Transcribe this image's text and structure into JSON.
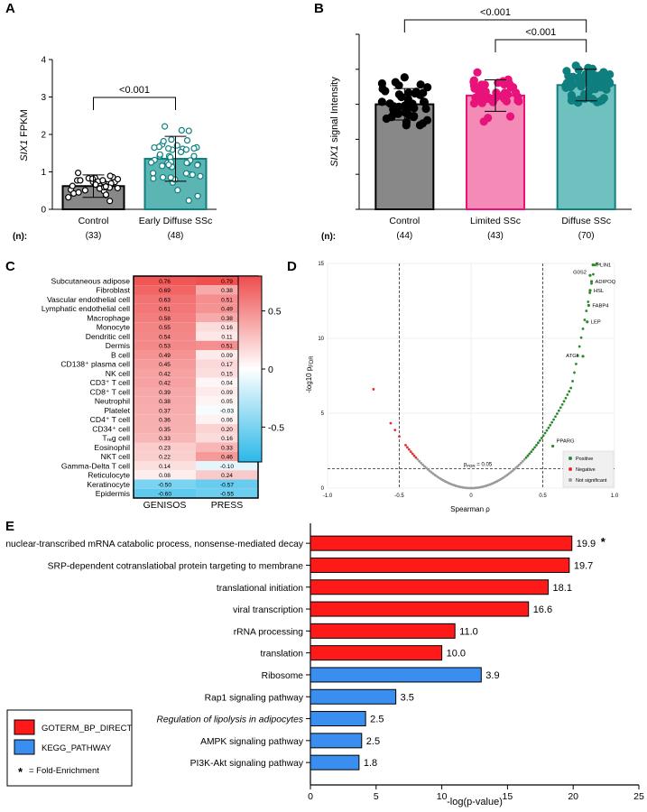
{
  "panels": {
    "A": {
      "letter": "A",
      "ylabel_italic": "SIX1",
      "ylabel_rest": " FPKM",
      "n_label": "(n):"
    },
    "B": {
      "letter": "B",
      "ylabel_italic": "SIX1",
      "ylabel_rest": " signal Intensity",
      "n_label": "(n):"
    },
    "C": {
      "letter": "C",
      "col_headers": [
        "GENISOS",
        "PRESS"
      ]
    },
    "D": {
      "letter": "D",
      "xlabel": "Spearman ρ",
      "ylabel": "-log10 p",
      "ylabel_sub": "FDR",
      "threshold_label": "p",
      "threshold_sub": "FDR",
      "threshold_value": " = 0.05"
    },
    "E": {
      "letter": "E",
      "xlabel": "-log(p-value)",
      "legend": {
        "bp": "GOTERM_BP_DIRECT",
        "kegg": "KEGG_PATHWAY",
        "star": "*",
        "star_text": "= Fold-Enrichment"
      }
    }
  },
  "chart_data": [
    {
      "panel": "A",
      "type": "bar",
      "categories": [
        "Control",
        "Early Diffuse SSc"
      ],
      "n": [
        "(33)",
        "(48)"
      ],
      "values": [
        0.62,
        1.35
      ],
      "sd": [
        0.3,
        0.6
      ],
      "ylim": [
        0,
        4
      ],
      "yticks": [
        "0",
        "1",
        "2",
        "3",
        "4"
      ],
      "colors": [
        "#888888",
        "#5ab5b3"
      ],
      "edge_colors": [
        "#000000",
        "#0f7f7f"
      ],
      "annotations": [
        {
          "text": "<0.001",
          "from": 0,
          "to": 1
        }
      ]
    },
    {
      "panel": "B",
      "type": "bar",
      "categories": [
        "Control",
        "Limited SSc",
        "Diffuse SSc"
      ],
      "n": [
        "(44)",
        "(43)",
        "(70)"
      ],
      "values": [
        3.0,
        3.25,
        3.55
      ],
      "sd": [
        0.45,
        0.45,
        0.45
      ],
      "ylim": [
        0,
        5
      ],
      "colors": [
        "#888888",
        "#f48bb6",
        "#6fc1bf"
      ],
      "edge_colors": [
        "#000000",
        "#e8137a",
        "#0f7f7f"
      ],
      "annotations": [
        {
          "text": "<0.001",
          "from": 0,
          "to": 2
        },
        {
          "text": "<0.001",
          "from": 1,
          "to": 2
        }
      ]
    },
    {
      "panel": "C",
      "type": "heatmap",
      "rows": [
        "Subcutaneous adipose",
        "Fibroblast",
        "Vascular endothelial cell",
        "Lymphatic endothelial cell",
        "Macrophage",
        "Monocyte",
        "Dendritic cell",
        "Dermis",
        "B cell",
        "CD138⁺ plasma cell",
        "NK cell",
        "CD3⁺ T cell",
        "CD8⁺ T cell",
        "Neutrophil",
        "Platelet",
        "CD4⁺ T cell",
        "CD34⁺ cell",
        "Tᵣₑg cell",
        "Eosinophil",
        "NKT cell",
        "Gamma-Delta T cell",
        "Reticulocyte",
        "Keratinocyte",
        "Epidermis"
      ],
      "columns": [
        "GENISOS",
        "PRESS"
      ],
      "values": [
        [
          0.76,
          0.79
        ],
        [
          0.69,
          0.38
        ],
        [
          0.63,
          0.51
        ],
        [
          0.61,
          0.49
        ],
        [
          0.58,
          0.38
        ],
        [
          0.55,
          0.16
        ],
        [
          0.54,
          0.11
        ],
        [
          0.53,
          0.51
        ],
        [
          0.49,
          0.09
        ],
        [
          0.45,
          0.17
        ],
        [
          0.42,
          0.15
        ],
        [
          0.42,
          0.04
        ],
        [
          0.39,
          0.09
        ],
        [
          0.38,
          0.05
        ],
        [
          0.37,
          -0.03
        ],
        [
          0.36,
          0.06
        ],
        [
          0.35,
          0.2
        ],
        [
          0.33,
          0.16
        ],
        [
          0.23,
          0.33
        ],
        [
          0.22,
          0.46
        ],
        [
          0.14,
          -0.1
        ],
        [
          0.08,
          0.24
        ],
        [
          -0.5,
          -0.57
        ],
        [
          -0.6,
          -0.55
        ]
      ],
      "labels": [
        [
          "0.76",
          "0.79"
        ],
        [
          "0.69",
          "0.38"
        ],
        [
          "0.63",
          "0.51"
        ],
        [
          "0.61",
          "0.49"
        ],
        [
          "0.58",
          "0.38"
        ],
        [
          "0.55",
          "0.16"
        ],
        [
          "0.54",
          "0.11"
        ],
        [
          "0.53",
          "0.51"
        ],
        [
          "0.49",
          "0.09"
        ],
        [
          "0.45",
          "0.17"
        ],
        [
          "0.42",
          "0.15"
        ],
        [
          "0.42",
          "0.04"
        ],
        [
          "0.39",
          "0.09"
        ],
        [
          "0.38",
          "0.05"
        ],
        [
          "0.37",
          "-0.03"
        ],
        [
          "0.36",
          "0.06"
        ],
        [
          "0.35",
          "0.20"
        ],
        [
          "0.33",
          "0.16"
        ],
        [
          "0.23",
          "0.33"
        ],
        [
          "0.22",
          "0.46"
        ],
        [
          "0.14",
          "-0.10"
        ],
        [
          "0.08",
          "0.24"
        ],
        [
          "-0.50",
          "-0.57"
        ],
        [
          "-0.60",
          "-0.55"
        ]
      ],
      "colorbar_ticks": [
        "0.5",
        "0",
        "-0.5"
      ],
      "colorbar_tick_values": [
        0.5,
        0,
        -0.5
      ],
      "colorbar_range": [
        -0.8,
        0.8
      ],
      "colors": {
        "positive": "#ef4d4d",
        "zero": "#ffffff",
        "negative": "#2ab8e8"
      }
    },
    {
      "panel": "D",
      "type": "scatter",
      "xlim": [
        -1.0,
        1.0
      ],
      "ylim": [
        0,
        15
      ],
      "xticks": [
        "-1.0",
        "-0.5",
        "0",
        "0.5",
        "1.0"
      ],
      "yticks": [
        "0",
        "5",
        "10",
        "15"
      ],
      "threshold_y": 1.3,
      "vlines": [
        -0.5,
        0.5
      ],
      "gene_labels": [
        {
          "text": "PLIN1",
          "x": 0.85,
          "y": 14.9
        },
        {
          "text": "ADIPOQ",
          "x": 0.84,
          "y": 13.8
        },
        {
          "text": "G0S2",
          "x": 0.83,
          "y": 14.2
        },
        {
          "text": "HSL",
          "x": 0.83,
          "y": 13.2
        },
        {
          "text": "FABP4",
          "x": 0.82,
          "y": 12.2
        },
        {
          "text": "LEP",
          "x": 0.81,
          "y": 11.1
        },
        {
          "text": "ATGL",
          "x": 0.78,
          "y": 8.8
        },
        {
          "text": "PPARG",
          "x": 0.57,
          "y": 2.8
        }
      ],
      "legend": [
        "Positive",
        "Negative",
        "Not significant"
      ],
      "colors": {
        "positive": "#2b8a2b",
        "negative": "#e03030",
        "ns": "#9a9a9a"
      }
    },
    {
      "panel": "E",
      "type": "bar",
      "orientation": "horizontal",
      "categories": [
        "nuclear-transcribed mRNA catabolic process, nonsense-mediated decay",
        "SRP-dependent cotranslatiobal protein  targeting to membrane",
        "translational initiation",
        "viral transcription",
        "rRNA processing",
        "translation",
        "Ribosome",
        "Rap1 signaling pathway",
        "Regulation of lipolysis in adipocytes",
        "AMPK signaling pathway",
        "PI3K-Akt signaling pathway"
      ],
      "italic": [
        false,
        false,
        false,
        false,
        false,
        false,
        false,
        false,
        true,
        false,
        false
      ],
      "values": [
        19.9,
        19.7,
        18.1,
        16.6,
        11.0,
        10.0,
        3.9,
        3.5,
        2.5,
        2.5,
        1.8
      ],
      "value_labels": [
        "19.9",
        "19.7",
        "18.1",
        "16.6",
        "11.0",
        "10.0",
        "3.9",
        "3.5",
        "2.5",
        "2.5",
        "1.8"
      ],
      "bar_extent": [
        19.9,
        19.7,
        18.1,
        16.6,
        11.0,
        10.0,
        13.0,
        6.5,
        4.2,
        3.9,
        3.7
      ],
      "series": [
        "GOTERM_BP_DIRECT",
        "GOTERM_BP_DIRECT",
        "GOTERM_BP_DIRECT",
        "GOTERM_BP_DIRECT",
        "GOTERM_BP_DIRECT",
        "GOTERM_BP_DIRECT",
        "KEGG_PATHWAY",
        "KEGG_PATHWAY",
        "KEGG_PATHWAY",
        "KEGG_PATHWAY",
        "KEGG_PATHWAY"
      ],
      "star": [
        true,
        false,
        false,
        false,
        false,
        false,
        false,
        false,
        false,
        false,
        false
      ],
      "xlim": [
        0,
        25
      ],
      "xticks": [
        "0",
        "5",
        "10",
        "15",
        "20",
        "25"
      ],
      "colors": {
        "GOTERM_BP_DIRECT": "#ff1a1a",
        "KEGG_PATHWAY": "#3a8ef0"
      }
    }
  ]
}
